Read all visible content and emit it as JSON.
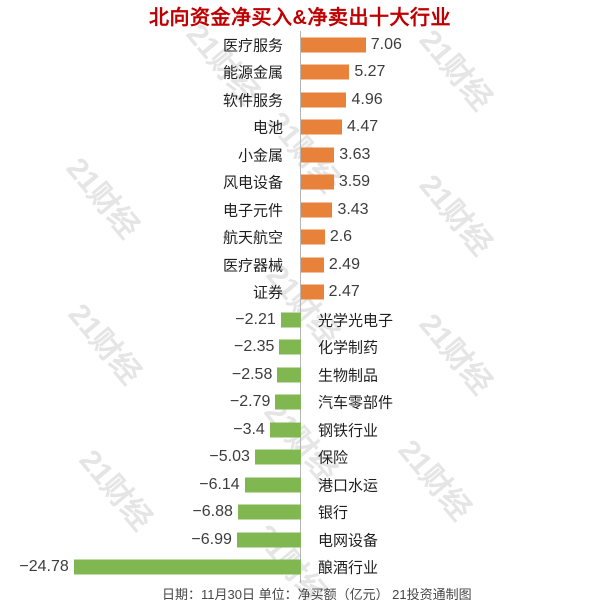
{
  "title": {
    "text": "北向资金净买入&净卖出十大行业",
    "color": "#c00000"
  },
  "watermark": {
    "text": "21财经"
  },
  "caption": {
    "text": "日期：11月30日 单位：净买额（亿元） 21投资通制图"
  },
  "chart_data": {
    "type": "bar",
    "orientation": "horizontal",
    "title": "北向资金净买入&净卖出十大行业",
    "date": "11月30日",
    "unit": "净买额（亿元）",
    "source": "21投资通制图",
    "positive_color": "#e8813a",
    "negative_color": "#80b750",
    "axis_color": "#b5b5b5",
    "xlim": [
      -25,
      8
    ],
    "series": [
      {
        "category": "医疗服务",
        "value": 7.06,
        "label": "7.06"
      },
      {
        "category": "能源金属",
        "value": 5.27,
        "label": "5.27"
      },
      {
        "category": "软件服务",
        "value": 4.96,
        "label": "4.96"
      },
      {
        "category": "电池",
        "value": 4.47,
        "label": "4.47"
      },
      {
        "category": "小金属",
        "value": 3.63,
        "label": "3.63"
      },
      {
        "category": "风电设备",
        "value": 3.59,
        "label": "3.59"
      },
      {
        "category": "电子元件",
        "value": 3.43,
        "label": "3.43"
      },
      {
        "category": "航天航空",
        "value": 2.6,
        "label": "2.6"
      },
      {
        "category": "医疗器械",
        "value": 2.49,
        "label": "2.49"
      },
      {
        "category": "证券",
        "value": 2.47,
        "label": "2.47"
      },
      {
        "category": "光学光电子",
        "value": -2.21,
        "label": "−2.21"
      },
      {
        "category": "化学制药",
        "value": -2.35,
        "label": "−2.35"
      },
      {
        "category": "生物制品",
        "value": -2.58,
        "label": "−2.58"
      },
      {
        "category": "汽车零部件",
        "value": -2.79,
        "label": "−2.79"
      },
      {
        "category": "钢铁行业",
        "value": -3.4,
        "label": "−3.4"
      },
      {
        "category": "保险",
        "value": -5.03,
        "label": "−5.03"
      },
      {
        "category": "港口水运",
        "value": -6.14,
        "label": "−6.14"
      },
      {
        "category": "银行",
        "value": -6.88,
        "label": "−6.88"
      },
      {
        "category": "电网设备",
        "value": -6.99,
        "label": "−6.99"
      },
      {
        "category": "酿酒行业",
        "value": -24.78,
        "label": "−24.78"
      }
    ]
  }
}
